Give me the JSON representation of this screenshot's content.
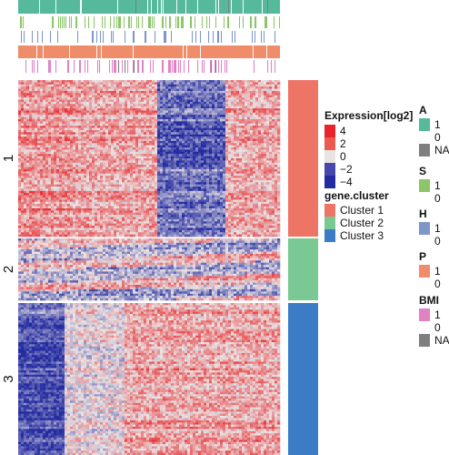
{
  "chart_data": {
    "type": "heatmap",
    "title": "",
    "xlabel": "",
    "ylabel": "",
    "color_scale": {
      "title": "Expression[log2]",
      "min": -4,
      "max": 4,
      "ticks": [
        {
          "value": 4,
          "label": "4",
          "color": "#e8252a"
        },
        {
          "value": 2,
          "label": "2",
          "color": "#ea5a4f"
        },
        {
          "value": 0,
          "label": "0",
          "color": "#e9e4e4"
        },
        {
          "value": -2,
          "label": "−2",
          "color": "#4747ac"
        },
        {
          "value": -4,
          "label": "−4",
          "color": "#232ba0"
        }
      ]
    },
    "row_split_labels": [
      "1",
      "2",
      "3"
    ],
    "gene_cluster_legend": {
      "title": "gene.cluster",
      "entries": [
        {
          "label": "Cluster 1",
          "color": "#ee7466"
        },
        {
          "label": "Cluster 2",
          "color": "#7bc992"
        },
        {
          "label": "Cluster 3",
          "color": "#3b7cc4"
        }
      ]
    },
    "column_annotations": [
      {
        "name": "A",
        "colors": {
          "1": "#56b99c",
          "0": "#ffffff",
          "NA": "#7f7f7f"
        },
        "levels": [
          "1",
          "0",
          "NA"
        ]
      },
      {
        "name": "S",
        "colors": {
          "1": "#8cc56a",
          "0": "#ffffff"
        },
        "levels": [
          "1",
          "0"
        ]
      },
      {
        "name": "H",
        "colors": {
          "1": "#7e96c8",
          "0": "#ffffff"
        },
        "levels": [
          "1",
          "0"
        ]
      },
      {
        "name": "P",
        "colors": {
          "1": "#ef8d6a",
          "0": "#ffffff"
        },
        "levels": [
          "1",
          "0"
        ]
      },
      {
        "name": "BMI",
        "colors": {
          "1": "#df83c4",
          "0": "#ffffff",
          "NA": "#7f7f7f"
        },
        "levels": [
          "1",
          "0",
          "NA"
        ]
      }
    ],
    "row_groups": [
      {
        "label": "1",
        "cluster": "Cluster 1",
        "pattern": "high in left and right columns, low in a middle-right column block"
      },
      {
        "label": "2",
        "cluster": "Cluster 2",
        "pattern": "mixed, alternating bands"
      },
      {
        "label": "3",
        "cluster": "Cluster 3",
        "pattern": "low in left columns, high in right columns"
      }
    ]
  }
}
